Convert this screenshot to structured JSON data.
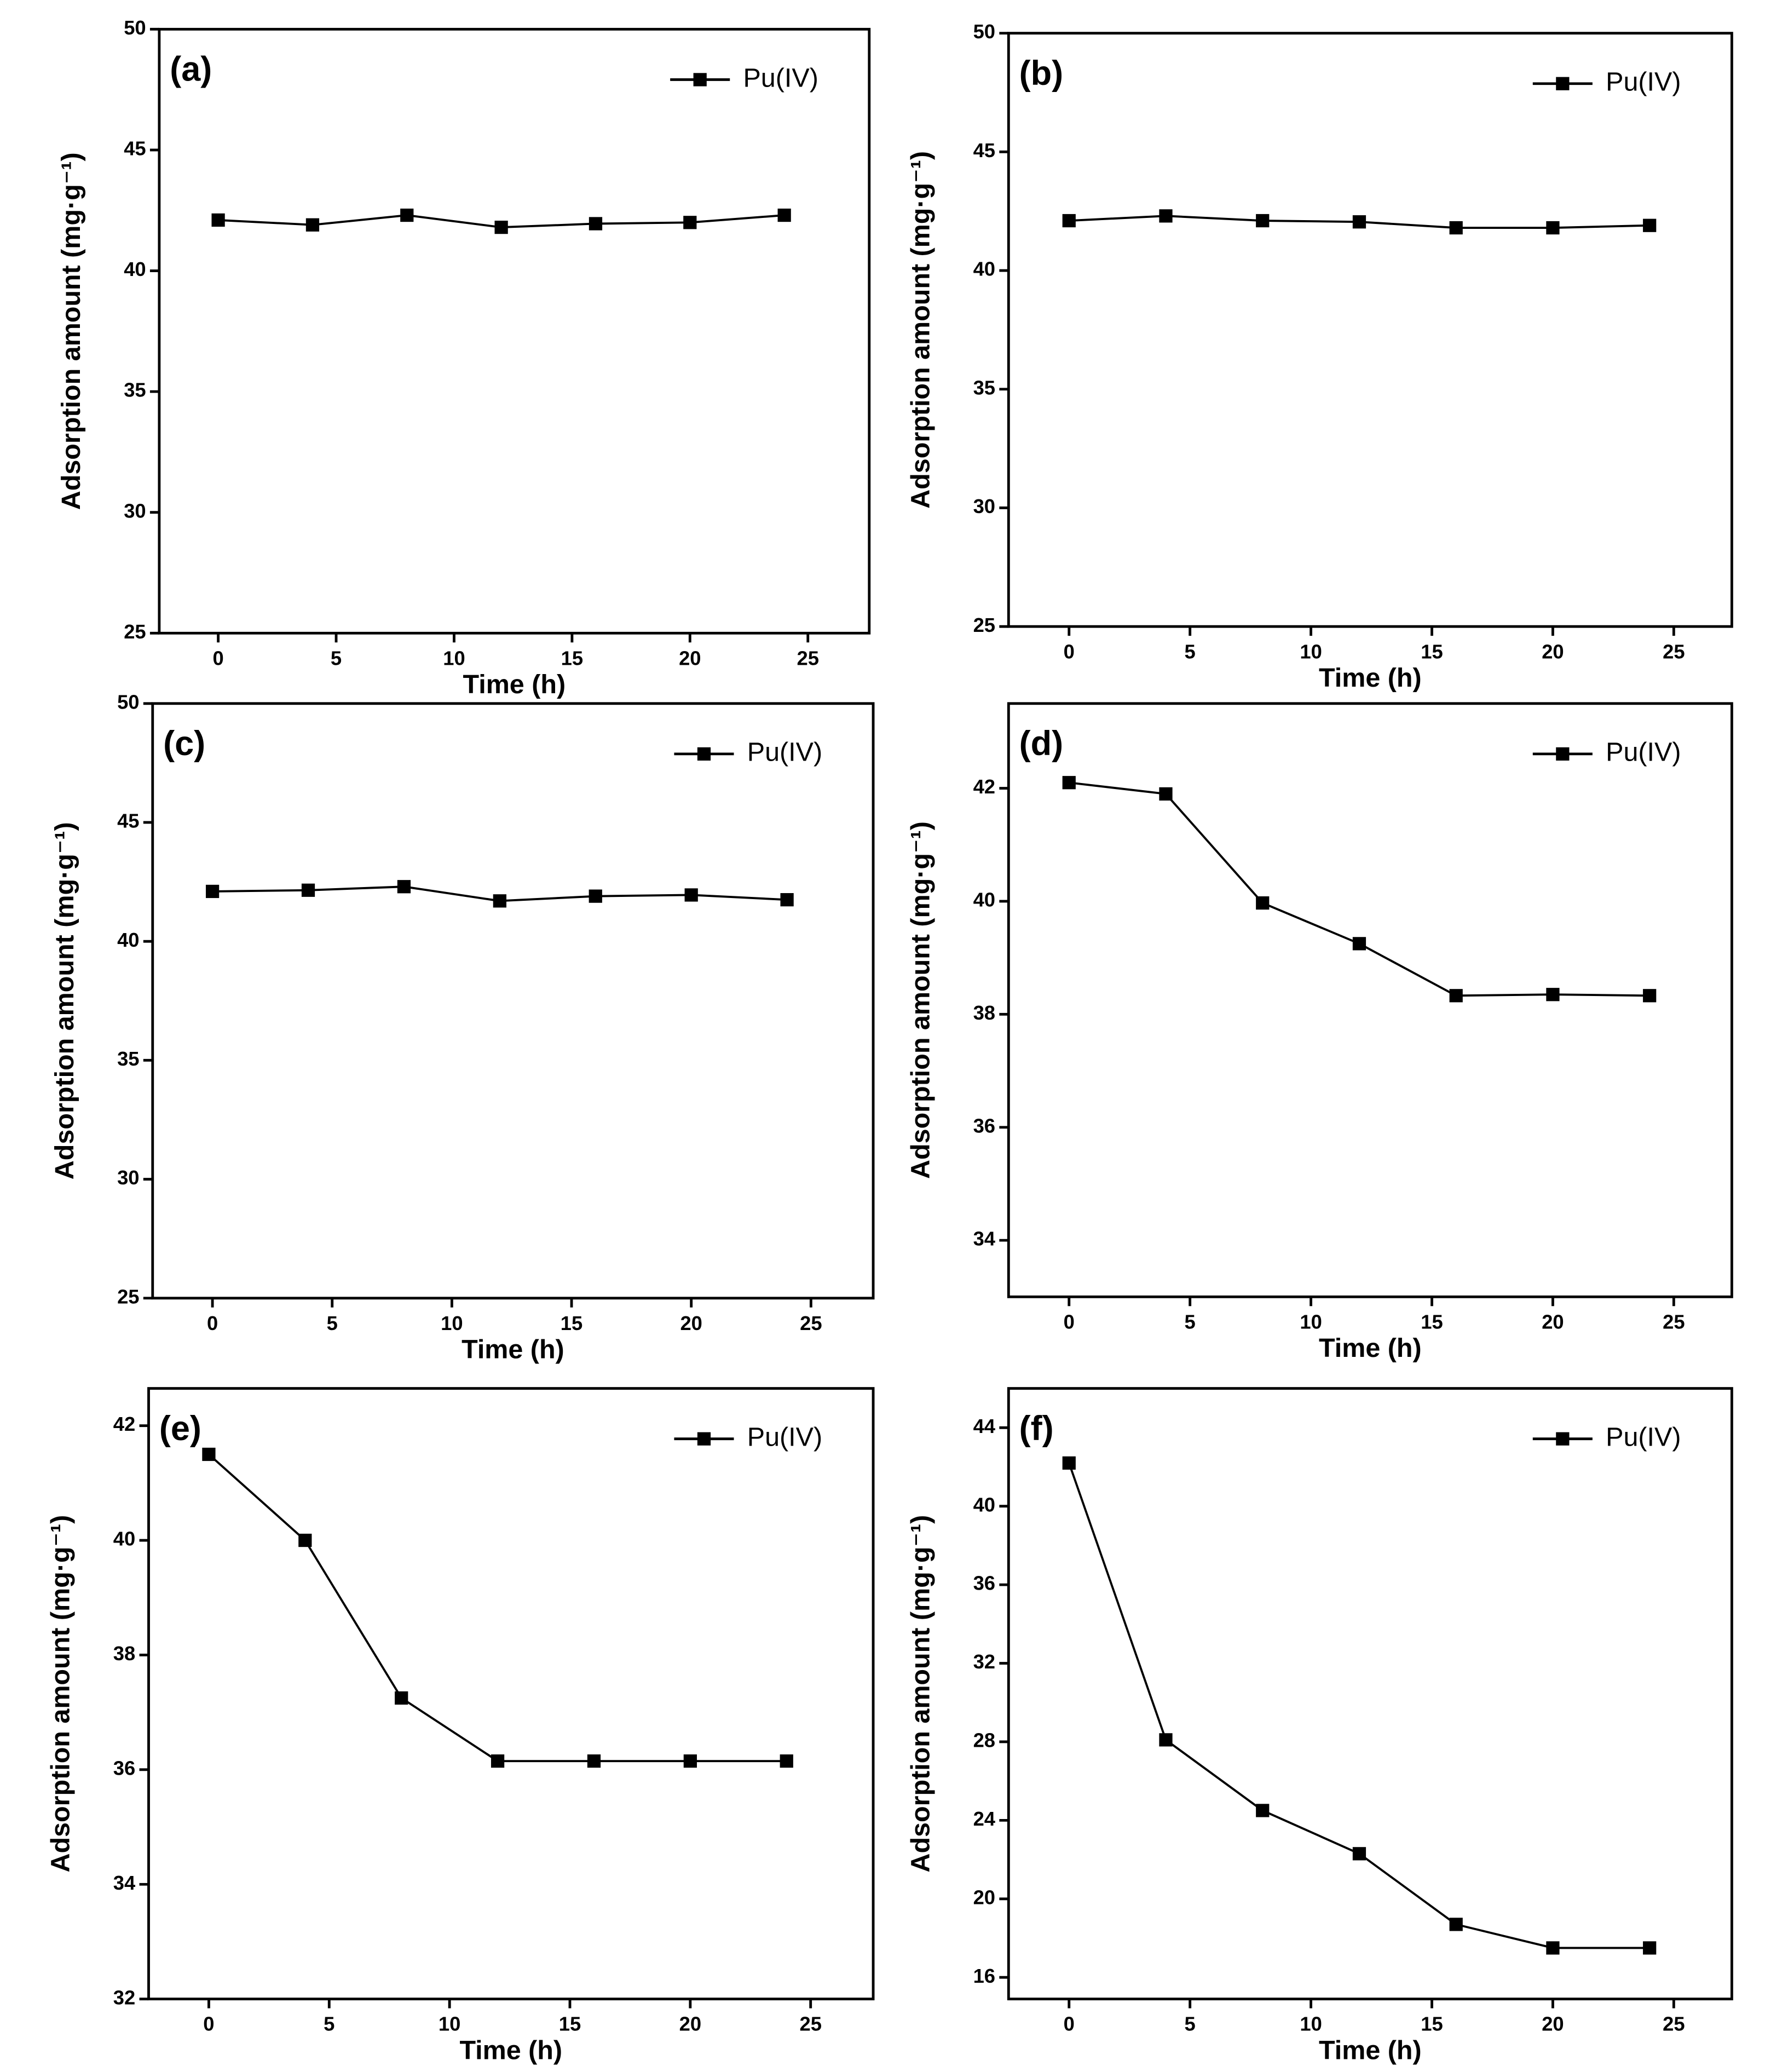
{
  "chart_data": [
    {
      "type": "line",
      "label": "(a)",
      "x_label": "Time (h)",
      "y_label": "Adsorption amount (mg·g⁻¹)",
      "x": [
        0,
        4,
        8,
        12,
        16,
        20,
        24
      ],
      "series": [
        {
          "name": "Pu(IV)",
          "color": "#000000",
          "values": [
            42.1,
            41.9,
            42.3,
            41.8,
            41.95,
            42.0,
            42.3
          ]
        }
      ],
      "xlim": [
        -2.5,
        27.6
      ],
      "ylim": [
        25,
        50
      ],
      "xticks": [
        0,
        5,
        10,
        15,
        20,
        25
      ],
      "yticks": [
        25,
        30,
        35,
        40,
        45,
        50
      ],
      "legend": "upper right"
    },
    {
      "type": "line",
      "label": "(b)",
      "x_label": "Time (h)",
      "y_label": "Adsorption amount (mg·g⁻¹)",
      "x": [
        0,
        4,
        8,
        12,
        16,
        20,
        24
      ],
      "series": [
        {
          "name": "Pu(IV)",
          "color": "#000000",
          "values": [
            42.1,
            42.3,
            42.1,
            42.05,
            41.8,
            41.8,
            41.9
          ]
        }
      ],
      "xlim": [
        -2.5,
        27.4
      ],
      "ylim": [
        25,
        50
      ],
      "xticks": [
        0,
        5,
        10,
        15,
        20,
        25
      ],
      "yticks": [
        25,
        30,
        35,
        40,
        45,
        50
      ],
      "legend": "upper right"
    },
    {
      "type": "line",
      "label": "(c)",
      "x_label": "Time (h)",
      "y_label": "Adsorption amount (mg·g⁻¹)",
      "x": [
        0,
        4,
        8,
        12,
        16,
        20,
        24
      ],
      "series": [
        {
          "name": "Pu(IV)",
          "color": "#000000",
          "values": [
            42.1,
            42.15,
            42.3,
            41.7,
            41.9,
            41.95,
            41.75
          ]
        }
      ],
      "xlim": [
        -2.5,
        27.6
      ],
      "ylim": [
        25,
        50
      ],
      "xticks": [
        0,
        5,
        10,
        15,
        20,
        25
      ],
      "yticks": [
        25,
        30,
        35,
        40,
        45,
        50
      ],
      "legend": "upper right"
    },
    {
      "type": "line",
      "label": "(d)",
      "x_label": "Time (h)",
      "y_label": "Adsorption amount (mg·g⁻¹)",
      "x": [
        0,
        4,
        8,
        12,
        16,
        20,
        24
      ],
      "series": [
        {
          "name": "Pu(IV)",
          "color": "#000000",
          "values": [
            42.1,
            41.9,
            39.97,
            39.25,
            38.33,
            38.35,
            38.33
          ]
        }
      ],
      "xlim": [
        -2.5,
        27.4
      ],
      "ylim": [
        33,
        43.5
      ],
      "xticks": [
        0,
        5,
        10,
        15,
        20,
        25
      ],
      "yticks": [
        34,
        36,
        38,
        40,
        42
      ],
      "legend": "upper right"
    },
    {
      "type": "line",
      "label": "(e)",
      "x_label": "Time (h)",
      "y_label": "Adsorption amount (mg·g⁻¹)",
      "x": [
        0,
        4,
        8,
        12,
        16,
        20,
        24
      ],
      "series": [
        {
          "name": "Pu(IV)",
          "color": "#000000",
          "values": [
            41.5,
            40.0,
            37.25,
            36.15,
            36.15,
            36.15,
            36.15
          ]
        }
      ],
      "xlim": [
        -2.5,
        27.6
      ],
      "ylim": [
        32,
        42.65
      ],
      "xticks": [
        0,
        5,
        10,
        15,
        20,
        25
      ],
      "yticks": [
        32,
        34,
        36,
        38,
        40,
        42
      ],
      "legend": "upper right"
    },
    {
      "type": "line",
      "label": "(f)",
      "x_label": "Time (h)",
      "y_label": "Adsorption amount (mg·g⁻¹)",
      "x": [
        0,
        4,
        8,
        12,
        16,
        20,
        24
      ],
      "series": [
        {
          "name": "Pu(IV)",
          "color": "#000000",
          "values": [
            42.2,
            28.1,
            24.5,
            22.3,
            18.7,
            17.5,
            17.5
          ]
        }
      ],
      "xlim": [
        -2.5,
        27.4
      ],
      "ylim": [
        14.9,
        46
      ],
      "xticks": [
        0,
        5,
        10,
        15,
        20,
        25
      ],
      "yticks": [
        16,
        20,
        24,
        28,
        32,
        36,
        40,
        44
      ],
      "legend": "upper right"
    }
  ]
}
